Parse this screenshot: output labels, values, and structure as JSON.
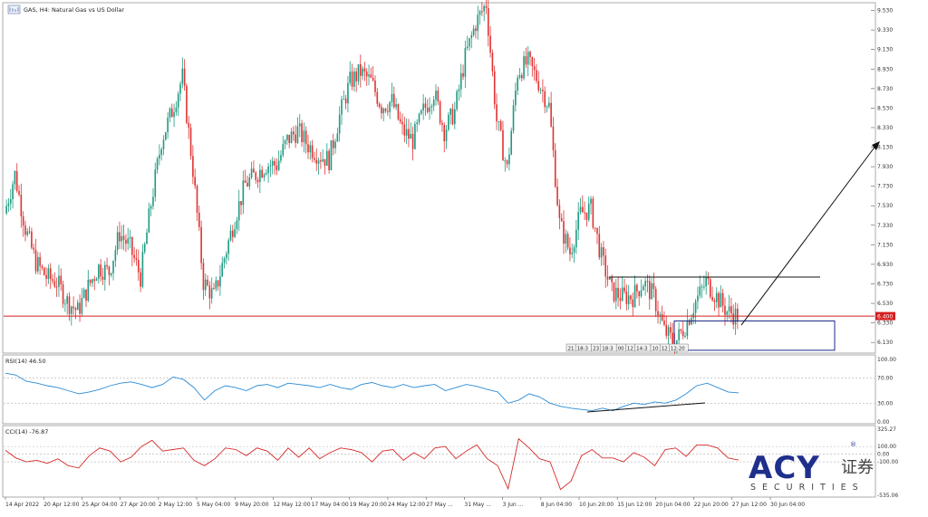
{
  "window": {
    "title": "GAS, H4: Natural Gas vs US Dollar"
  },
  "colors": {
    "bull": "#1f9a82",
    "bear": "#e03434",
    "support": "#d41f1f",
    "rsi_line": "#2a8bd6",
    "cci_line": "#d62a2a",
    "annotation": "#111111",
    "box": "#1c2a8c",
    "grid": "#c8c8c8",
    "brand_dark": "#1f2f8c"
  },
  "price_axis": {
    "labels": [
      "9.530",
      "9.330",
      "9.130",
      "8.930",
      "8.730",
      "8.530",
      "8.330",
      "8.130",
      "7.930",
      "7.730",
      "7.530",
      "7.330",
      "7.130",
      "6.930",
      "6.730",
      "6.530",
      "6.330",
      "6.130"
    ],
    "current_price_label": "6.400"
  },
  "time_axis": {
    "labels": [
      "14 Apr 2022",
      "20 Apr 12:00",
      "25 Apr 04:00",
      "27 Apr 20:00",
      "2 May 12:00",
      "5 May 04:00",
      "9 May 20:00",
      "12 May 12:00",
      "17 May 04:00",
      "19 May 20:00",
      "24 May 12:00",
      "27 May ...",
      "31 May ...",
      "3 Jun ...",
      "8 Jun 04:00",
      "10 Jun 20:00",
      "15 Jun 12:00",
      "20 Jun 04:00",
      "22 Jun 20:00",
      "27 Jun 12:00",
      "30 Jun 04:00"
    ]
  },
  "mini_labels": [
    "21",
    "18:3",
    "23",
    "18:3",
    "00",
    "12",
    "14:3",
    "10",
    "12",
    "12:20"
  ],
  "rsi": {
    "label": "RSI(14) 46.50",
    "axis_labels": [
      "100.00",
      "70.00",
      "30.00",
      "0.00"
    ]
  },
  "cci": {
    "label": "CCI(14) -76.87",
    "axis_labels": [
      "325.27",
      "100.00",
      "0.00",
      "-100.00",
      "-535.06"
    ]
  },
  "brand": {
    "logo_text": "ACY",
    "chinese": "证券",
    "sub": "SECURITIES",
    "registered": "®"
  },
  "chart_data": [
    {
      "type": "candlestick",
      "title": "GAS, H4: Natural Gas vs US Dollar",
      "ylim": [
        6.03,
        9.6
      ],
      "x": [
        "14 Apr 2022",
        "20 Apr 12:00",
        "25 Apr 04:00",
        "27 Apr 20:00",
        "2 May 12:00",
        "5 May 04:00",
        "9 May 20:00",
        "12 May 12:00",
        "17 May 04:00",
        "19 May 20:00",
        "24 May 12:00",
        "27 May",
        "31 May",
        "3 Jun",
        "8 Jun 04:00",
        "10 Jun 20:00",
        "15 Jun 12:00",
        "20 Jun 04:00",
        "22 Jun 20:00",
        "27 Jun 12:00",
        "30 Jun 04:00"
      ],
      "close_path": [
        7.45,
        7.85,
        7.3,
        6.95,
        6.8,
        6.75,
        6.55,
        6.45,
        6.7,
        6.9,
        6.85,
        7.25,
        7.1,
        6.8,
        7.55,
        8.2,
        8.5,
        8.85,
        7.9,
        6.75,
        6.6,
        7.0,
        7.4,
        7.75,
        7.85,
        7.95,
        7.95,
        8.2,
        8.3,
        8.15,
        8.05,
        8.0,
        8.45,
        8.8,
        8.9,
        8.8,
        8.55,
        8.6,
        8.3,
        8.2,
        8.5,
        8.7,
        8.3,
        8.5,
        9.05,
        9.4,
        9.6,
        8.4,
        7.9,
        8.9,
        9.0,
        8.8,
        8.55,
        7.35,
        7.05,
        7.45,
        7.5,
        7.0,
        6.65,
        6.6,
        6.6,
        6.75,
        6.6,
        6.25,
        6.12,
        6.3,
        6.55,
        6.75,
        6.6,
        6.45,
        6.4
      ],
      "horizontal_levels": {
        "support": 6.4,
        "resistance": 6.8
      }
    },
    {
      "type": "line",
      "name": "RSI(14)",
      "ylim": [
        0,
        100
      ],
      "levels": [
        70,
        30
      ],
      "values": [
        78,
        75,
        65,
        62,
        58,
        55,
        50,
        45,
        48,
        52,
        58,
        62,
        64,
        60,
        55,
        60,
        72,
        68,
        55,
        35,
        50,
        58,
        55,
        50,
        58,
        60,
        55,
        62,
        60,
        58,
        55,
        60,
        55,
        52,
        60,
        63,
        58,
        55,
        60,
        55,
        58,
        60,
        50,
        55,
        60,
        57,
        52,
        48,
        30,
        35,
        45,
        40,
        30,
        25,
        22,
        20,
        18,
        22,
        18,
        25,
        30,
        28,
        32,
        30,
        35,
        45,
        58,
        62,
        55,
        48,
        46.5
      ]
    },
    {
      "type": "line",
      "name": "CCI(14)",
      "ylim": [
        -535.06,
        325.27
      ],
      "levels": [
        100,
        0,
        -100
      ],
      "values": [
        50,
        -50,
        -100,
        -80,
        -120,
        -60,
        -150,
        -180,
        -20,
        80,
        40,
        -100,
        -40,
        100,
        180,
        40,
        60,
        80,
        -80,
        -150,
        -60,
        80,
        60,
        -20,
        80,
        40,
        -80,
        80,
        -40,
        80,
        -60,
        20,
        80,
        60,
        20,
        -100,
        40,
        60,
        -80,
        20,
        -60,
        80,
        100,
        -60,
        40,
        120,
        -60,
        -150,
        -450,
        200,
        80,
        -60,
        -100,
        -460,
        -350,
        -20,
        60,
        -50,
        -50,
        -100,
        20,
        -40,
        -150,
        60,
        80,
        -30,
        120,
        120,
        80,
        -50,
        -76.87
      ]
    }
  ]
}
